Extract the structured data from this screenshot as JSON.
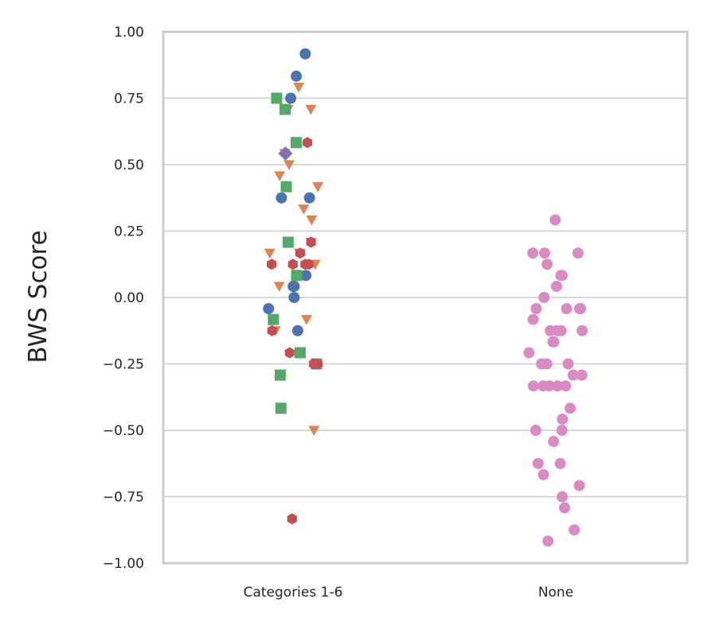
{
  "chart_data": {
    "type": "scatter",
    "ylabel": "BWS Score",
    "xlabel": "",
    "categories": [
      "Categories 1-6",
      "None"
    ],
    "ylim": [
      -1.0,
      1.0
    ],
    "yticks": [
      1.0,
      0.75,
      0.5,
      0.25,
      0.0,
      -0.25,
      -0.5,
      -0.75,
      -1.0
    ],
    "ytick_labels": [
      "1.00",
      "0.75",
      "0.50",
      "0.25",
      "0.00",
      "−0.25",
      "−0.50",
      "−0.75",
      "−1.00"
    ],
    "grid": "horizontal",
    "legend": "none",
    "series": [
      {
        "marker": "circle",
        "color": "#4c72b0",
        "category": "Categories 1-6",
        "values": [
          0.917,
          0.833,
          0.75,
          0.375,
          0.375,
          0.083,
          0.042,
          0.042,
          0.0,
          -0.042,
          -0.125
        ]
      },
      {
        "marker": "triangle-down",
        "color": "#dd8452",
        "category": "Categories 1-6",
        "values": [
          0.792,
          0.708,
          0.708,
          0.542,
          0.5,
          0.458,
          0.417,
          0.333,
          0.292,
          0.208,
          0.167,
          0.167,
          0.125,
          0.042,
          -0.083,
          -0.125,
          -0.5
        ]
      },
      {
        "marker": "square",
        "color": "#55a868",
        "category": "Categories 1-6",
        "values": [
          0.75,
          0.708,
          0.583,
          0.417,
          0.208,
          0.083,
          -0.083,
          -0.208,
          -0.25,
          -0.292,
          -0.417
        ]
      },
      {
        "marker": "hexagon",
        "color": "#c44e52",
        "category": "Categories 1-6",
        "values": [
          0.583,
          0.208,
          0.167,
          0.125,
          0.125,
          0.125,
          0.125,
          -0.125,
          -0.208,
          -0.25,
          -0.25,
          -0.833
        ]
      },
      {
        "marker": "diamond",
        "color": "#8172b3",
        "category": "Categories 1-6",
        "values": [
          0.542
        ]
      },
      {
        "marker": "circle",
        "color": "#da8bc3",
        "category": "None",
        "values": [
          0.292,
          0.167,
          0.167,
          0.167,
          0.125,
          0.083,
          0.083,
          0.042,
          0.0,
          -0.042,
          -0.042,
          -0.042,
          -0.042,
          -0.083,
          -0.125,
          -0.125,
          -0.125,
          -0.125,
          -0.167,
          -0.167,
          -0.208,
          -0.25,
          -0.25,
          -0.25,
          -0.292,
          -0.292,
          -0.333,
          -0.333,
          -0.333,
          -0.333,
          -0.333,
          -0.417,
          -0.458,
          -0.5,
          -0.5,
          -0.542,
          -0.625,
          -0.625,
          -0.667,
          -0.708,
          -0.75,
          -0.792,
          -0.875,
          -0.917
        ]
      }
    ]
  }
}
